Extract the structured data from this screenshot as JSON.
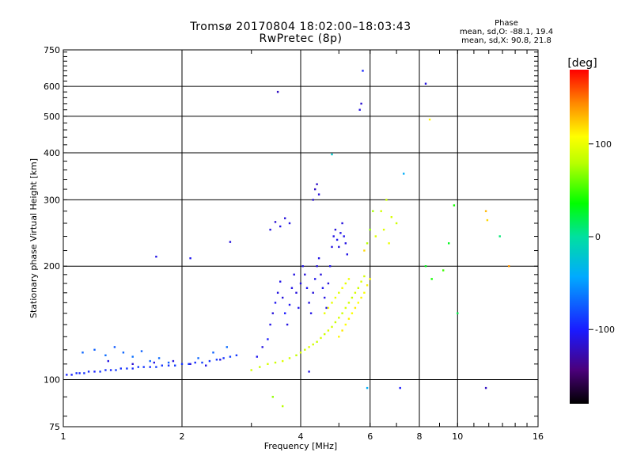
{
  "header": {
    "title": "Tromsø 20170804 18:02:00–18:03:43",
    "subtitle": "RwPretec (8p)"
  },
  "phase_stats": {
    "heading": "Phase",
    "line_o": "mean, sd,O: -88.1, 19.4",
    "line_x": "mean, sd,X:  90.8, 21.8"
  },
  "colorbar": {
    "label": "[deg]",
    "ticks": [
      "100",
      "0",
      "-100"
    ],
    "range": [
      -180,
      180
    ],
    "tick_values": [
      100,
      0,
      -100
    ]
  },
  "chart_data": {
    "type": "scatter",
    "xscale": "log",
    "yscale": "log",
    "xlabel": "Frequency [MHz]",
    "ylabel": "Stationary phase Virtual Height [km]",
    "xlim": [
      1,
      16
    ],
    "ylim": [
      75,
      750
    ],
    "xticks": [
      1,
      2,
      4,
      6,
      8,
      10,
      16
    ],
    "xtick_labels": [
      "1",
      "2",
      "4",
      "6",
      "8",
      "10",
      "16"
    ],
    "yticks": [
      75,
      100,
      200,
      300,
      400,
      500,
      600,
      750
    ],
    "ytick_labels": [
      "75",
      "100",
      "200",
      "300",
      "400",
      "500",
      "600",
      "750"
    ],
    "grid": true,
    "color_encoding": "phase in degrees",
    "series": [
      {
        "description": "O-mode (low frequency E/F trace)",
        "points": [
          [
            1.02,
            103,
            -95
          ],
          [
            1.05,
            103,
            -98
          ],
          [
            1.08,
            104,
            -92
          ],
          [
            1.1,
            104,
            -96
          ],
          [
            1.13,
            104,
            -90
          ],
          [
            1.16,
            105,
            -94
          ],
          [
            1.2,
            105,
            -97
          ],
          [
            1.24,
            105,
            -88
          ],
          [
            1.28,
            106,
            -91
          ],
          [
            1.32,
            106,
            -95
          ],
          [
            1.36,
            106,
            -86
          ],
          [
            1.4,
            107,
            -92
          ],
          [
            1.45,
            107,
            -89
          ],
          [
            1.5,
            107,
            -94
          ],
          [
            1.55,
            108,
            -87
          ],
          [
            1.6,
            108,
            -90
          ],
          [
            1.66,
            108,
            -93
          ],
          [
            1.72,
            108,
            -85
          ],
          [
            1.78,
            109,
            -89
          ],
          [
            1.85,
            109,
            -92
          ],
          [
            1.92,
            109,
            -86
          ],
          [
            2.0,
            110,
            -90
          ],
          [
            2.08,
            110,
            -88
          ],
          [
            2.16,
            111,
            -92
          ],
          [
            2.25,
            111,
            -85
          ],
          [
            2.35,
            112,
            -89
          ],
          [
            2.45,
            113,
            -87
          ],
          [
            2.55,
            114,
            -91
          ],
          [
            2.65,
            115,
            -84
          ],
          [
            2.75,
            116,
            -88
          ],
          [
            1.12,
            118,
            -70
          ],
          [
            1.2,
            120,
            -72
          ],
          [
            1.28,
            116,
            -68
          ],
          [
            1.35,
            122,
            -75
          ],
          [
            1.42,
            118,
            -70
          ],
          [
            1.5,
            115,
            -66
          ],
          [
            1.58,
            119,
            -72
          ],
          [
            1.66,
            112,
            -70
          ],
          [
            1.75,
            114,
            -68
          ],
          [
            1.85,
            111,
            -74
          ],
          [
            2.2,
            114,
            -70
          ],
          [
            2.4,
            118,
            -72
          ],
          [
            2.6,
            122,
            -68
          ],
          [
            1.3,
            112,
            -110
          ],
          [
            1.5,
            110,
            -115
          ],
          [
            1.7,
            111,
            -108
          ],
          [
            1.9,
            112,
            -112
          ],
          [
            2.1,
            110,
            -110
          ],
          [
            2.3,
            109,
            -108
          ],
          [
            2.5,
            113,
            -112
          ],
          [
            3.1,
            115,
            -105
          ],
          [
            3.2,
            122,
            -110
          ],
          [
            3.3,
            128,
            -100
          ],
          [
            3.35,
            140,
            -108
          ],
          [
            3.4,
            150,
            -112
          ],
          [
            3.45,
            160,
            -105
          ],
          [
            3.5,
            170,
            -110
          ],
          [
            3.55,
            182,
            -108
          ],
          [
            3.6,
            165,
            -112
          ],
          [
            3.65,
            150,
            -100
          ],
          [
            3.7,
            140,
            -110
          ],
          [
            3.75,
            158,
            -105
          ],
          [
            3.8,
            175,
            -108
          ],
          [
            3.85,
            190,
            -110
          ],
          [
            3.9,
            170,
            -112
          ],
          [
            3.95,
            155,
            -106
          ],
          [
            4.0,
            180,
            -110
          ],
          [
            4.05,
            200,
            -108
          ],
          [
            4.1,
            190,
            -112
          ],
          [
            4.15,
            175,
            -105
          ],
          [
            4.2,
            160,
            -110
          ],
          [
            4.25,
            150,
            -108
          ],
          [
            4.3,
            170,
            -112
          ],
          [
            4.35,
            185,
            -106
          ],
          [
            4.4,
            200,
            -110
          ],
          [
            4.45,
            210,
            -108
          ],
          [
            4.5,
            190,
            -112
          ],
          [
            4.55,
            175,
            -105
          ],
          [
            4.6,
            165,
            -110
          ],
          [
            4.65,
            155,
            -108
          ],
          [
            4.7,
            180,
            -112
          ],
          [
            4.75,
            200,
            -106
          ],
          [
            4.8,
            225,
            -110
          ],
          [
            4.85,
            240,
            -108
          ],
          [
            4.9,
            250,
            -112
          ],
          [
            4.95,
            235,
            -105
          ],
          [
            5.0,
            225,
            -110
          ],
          [
            5.05,
            245,
            -108
          ],
          [
            5.1,
            260,
            -112
          ],
          [
            5.15,
            240,
            -106
          ],
          [
            5.2,
            230,
            -110
          ],
          [
            5.25,
            215,
            -108
          ],
          [
            4.3,
            300,
            -115
          ],
          [
            4.35,
            320,
            -120
          ],
          [
            4.4,
            330,
            -118
          ],
          [
            4.45,
            310,
            -112
          ],
          [
            3.35,
            250,
            -110
          ],
          [
            3.45,
            262,
            -115
          ],
          [
            3.55,
            255,
            -108
          ],
          [
            3.65,
            268,
            -112
          ],
          [
            3.75,
            260,
            -110
          ],
          [
            3.5,
            580,
            -120
          ],
          [
            5.65,
            520,
            -110
          ],
          [
            5.7,
            540,
            -115
          ],
          [
            5.75,
            660,
            -95
          ],
          [
            8.3,
            610,
            -110
          ],
          [
            7.15,
            95,
            -100
          ],
          [
            11.8,
            95,
            -120
          ],
          [
            4.2,
            105,
            -110
          ],
          [
            1.72,
            212,
            -108
          ],
          [
            2.1,
            210,
            -105
          ],
          [
            2.65,
            232,
            -112
          ]
        ]
      },
      {
        "description": "X-mode (higher frequency trace)",
        "points": [
          [
            3.0,
            106,
            90
          ],
          [
            3.15,
            108,
            85
          ],
          [
            3.3,
            110,
            92
          ],
          [
            3.45,
            111,
            88
          ],
          [
            3.6,
            112,
            95
          ],
          [
            3.75,
            114,
            90
          ],
          [
            3.9,
            116,
            85
          ],
          [
            4.0,
            118,
            92
          ],
          [
            4.1,
            120,
            88
          ],
          [
            4.2,
            122,
            95
          ],
          [
            4.3,
            124,
            90
          ],
          [
            4.4,
            126,
            86
          ],
          [
            4.5,
            129,
            92
          ],
          [
            4.6,
            132,
            88
          ],
          [
            4.7,
            135,
            94
          ],
          [
            4.8,
            138,
            90
          ],
          [
            4.9,
            142,
            86
          ],
          [
            5.0,
            146,
            92
          ],
          [
            5.1,
            150,
            88
          ],
          [
            5.2,
            155,
            94
          ],
          [
            5.3,
            160,
            90
          ],
          [
            5.4,
            165,
            86
          ],
          [
            5.5,
            170,
            92
          ],
          [
            5.6,
            175,
            88
          ],
          [
            5.7,
            182,
            94
          ],
          [
            5.8,
            188,
            90
          ],
          [
            4.6,
            150,
            100
          ],
          [
            4.7,
            155,
            105
          ],
          [
            4.8,
            160,
            98
          ],
          [
            4.9,
            165,
            102
          ],
          [
            5.0,
            170,
            96
          ],
          [
            5.1,
            175,
            104
          ],
          [
            5.2,
            180,
            98
          ],
          [
            5.3,
            185,
            102
          ],
          [
            5.0,
            130,
            110
          ],
          [
            5.1,
            135,
            115
          ],
          [
            5.2,
            140,
            108
          ],
          [
            5.3,
            145,
            112
          ],
          [
            5.4,
            150,
            106
          ],
          [
            5.5,
            155,
            114
          ],
          [
            5.6,
            160,
            108
          ],
          [
            5.7,
            165,
            112
          ],
          [
            5.8,
            170,
            106
          ],
          [
            5.9,
            178,
            112
          ],
          [
            6.0,
            185,
            108
          ],
          [
            6.2,
            240,
            95
          ],
          [
            6.4,
            280,
            90
          ],
          [
            6.6,
            300,
            85
          ],
          [
            6.8,
            270,
            92
          ],
          [
            7.0,
            260,
            88
          ],
          [
            6.5,
            250,
            95
          ],
          [
            6.7,
            230,
            100
          ],
          [
            5.9,
            230,
            80
          ],
          [
            6.0,
            250,
            70
          ],
          [
            6.1,
            280,
            75
          ],
          [
            5.8,
            220,
            120
          ],
          [
            8.5,
            490,
            110
          ],
          [
            9.8,
            290,
            40
          ],
          [
            9.5,
            230,
            30
          ],
          [
            8.3,
            200,
            30
          ],
          [
            10.0,
            150,
            20
          ],
          [
            11.8,
            280,
            130
          ],
          [
            13.5,
            200,
            140
          ],
          [
            11.9,
            265,
            120
          ],
          [
            12.8,
            240,
            10
          ],
          [
            4.8,
            396,
            -20
          ],
          [
            7.3,
            352,
            -40
          ],
          [
            3.4,
            90,
            70
          ],
          [
            3.6,
            85,
            80
          ],
          [
            5.9,
            95,
            -40
          ],
          [
            9.2,
            195,
            50
          ],
          [
            8.6,
            185,
            40
          ]
        ]
      }
    ]
  }
}
